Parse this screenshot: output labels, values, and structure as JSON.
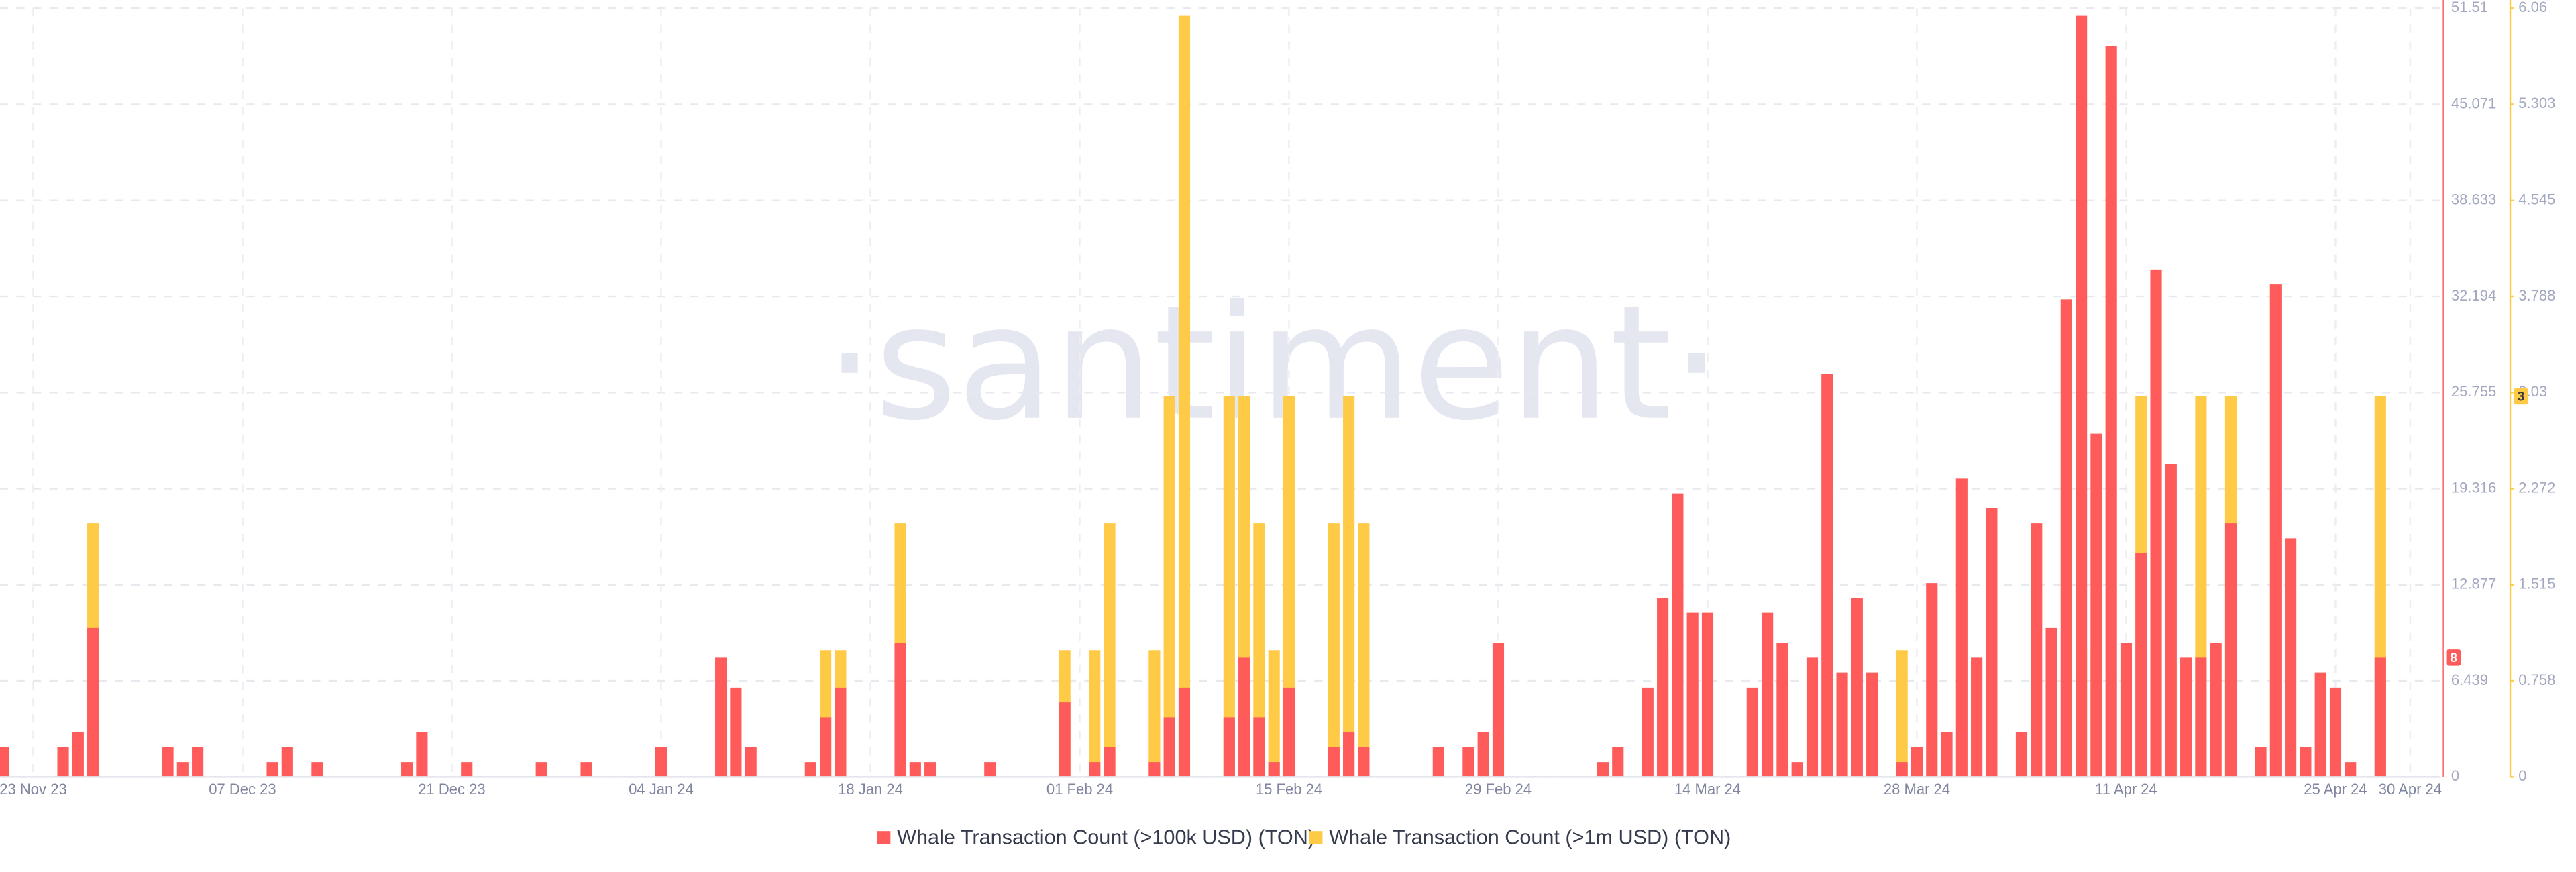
{
  "chart_data": {
    "type": "bar",
    "watermark": "·santiment·",
    "categories": [
      null,
      null,
      "23 Nov 23",
      null,
      null,
      null,
      null,
      null,
      null,
      null,
      null,
      null,
      null,
      null,
      null,
      null,
      "07 Dec 23",
      null,
      null,
      null,
      null,
      null,
      null,
      null,
      null,
      null,
      null,
      null,
      null,
      null,
      "21 Dec 23",
      null,
      null,
      null,
      null,
      null,
      null,
      null,
      null,
      null,
      null,
      null,
      null,
      null,
      "04 Jan 24",
      null,
      null,
      null,
      null,
      null,
      null,
      null,
      null,
      null,
      null,
      null,
      null,
      null,
      "18 Jan 24",
      null,
      null,
      null,
      null,
      null,
      null,
      null,
      null,
      null,
      null,
      null,
      null,
      null,
      "01 Feb 24",
      null,
      null,
      null,
      null,
      null,
      null,
      null,
      null,
      null,
      null,
      null,
      null,
      null,
      "15 Feb 24",
      null,
      null,
      null,
      null,
      null,
      null,
      null,
      null,
      null,
      null,
      null,
      null,
      null,
      "29 Feb 24",
      null,
      null,
      null,
      null,
      null,
      null,
      null,
      null,
      null,
      null,
      null,
      null,
      null,
      "14 Mar 24",
      null,
      null,
      null,
      null,
      null,
      null,
      null,
      null,
      null,
      null,
      null,
      null,
      null,
      "28 Mar 24",
      null,
      null,
      null,
      null,
      null,
      null,
      null,
      null,
      null,
      null,
      null,
      null,
      null,
      "11 Apr 24",
      null,
      null,
      null,
      null,
      null,
      null,
      null,
      null,
      null,
      null,
      null,
      null,
      null,
      "25 Apr 24",
      null,
      null,
      null,
      null,
      "30 Apr 24"
    ],
    "series": [
      {
        "name": "Whale Transaction Count (>100k USD) (TON)",
        "color": "#ff5b5b",
        "values": [
          2,
          0,
          0,
          0,
          2,
          3,
          10,
          0,
          0,
          0,
          0,
          2,
          1,
          2,
          0,
          0,
          0,
          0,
          1,
          2,
          0,
          1,
          0,
          0,
          0,
          0,
          0,
          1,
          3,
          0,
          0,
          1,
          0,
          0,
          0,
          0,
          1,
          0,
          0,
          1,
          0,
          0,
          0,
          0,
          2,
          0,
          0,
          0,
          8,
          6,
          2,
          0,
          0,
          0,
          1,
          4,
          6,
          0,
          0,
          0,
          9,
          1,
          1,
          0,
          0,
          0,
          1,
          0,
          0,
          0,
          0,
          5,
          0,
          1,
          2,
          0,
          0,
          1,
          4,
          6,
          0,
          0,
          4,
          8,
          4,
          1,
          6,
          0,
          0,
          2,
          3,
          2,
          0,
          0,
          0,
          0,
          2,
          0,
          2,
          3,
          9,
          0,
          0,
          0,
          0,
          0,
          0,
          1,
          2,
          0,
          6,
          12,
          19,
          11,
          11,
          0,
          0,
          6,
          11,
          9,
          1,
          8,
          27,
          7,
          12,
          7,
          0,
          1,
          2,
          13,
          3,
          20,
          8,
          18,
          0,
          3,
          17,
          10,
          32,
          51,
          23,
          49,
          9,
          15,
          34,
          21,
          8,
          8,
          9,
          17,
          0,
          2,
          33,
          16,
          2,
          7,
          6,
          1,
          0,
          8,
          0,
          0
        ]
      },
      {
        "name": "Whale Transaction Count (>1m USD) (TON)",
        "color": "#ffcb47",
        "axis": "y2",
        "values": [
          0,
          0,
          0,
          0,
          0,
          0,
          2,
          0,
          0,
          0,
          0,
          0,
          0,
          0,
          0,
          0,
          0,
          0,
          0,
          0,
          0,
          0,
          0,
          0,
          0,
          0,
          0,
          0,
          0,
          0,
          0,
          0,
          0,
          0,
          0,
          0,
          0,
          0,
          0,
          0,
          0,
          0,
          0,
          0,
          0,
          0,
          0,
          0,
          0,
          0,
          0,
          0,
          0,
          0,
          0,
          1,
          1,
          0,
          0,
          0,
          2,
          0,
          0,
          0,
          0,
          0,
          0,
          0,
          0,
          0,
          0,
          1,
          0,
          1,
          2,
          0,
          0,
          1,
          3,
          6,
          0,
          0,
          3,
          3,
          2,
          1,
          3,
          0,
          0,
          2,
          3,
          2,
          0,
          0,
          0,
          0,
          0,
          0,
          0,
          0,
          0,
          0,
          0,
          0,
          0,
          0,
          0,
          0,
          0,
          0,
          0,
          1,
          0,
          0,
          0,
          0,
          0,
          0,
          0,
          0,
          0,
          0,
          0,
          0,
          0,
          0,
          0,
          1,
          0,
          0,
          0,
          0,
          0,
          0,
          0,
          0,
          0,
          0,
          0,
          1,
          1,
          0,
          0,
          3,
          0,
          0,
          0,
          3,
          0,
          3,
          0,
          0,
          0,
          0,
          0,
          0,
          0,
          0,
          0,
          3,
          0,
          0
        ]
      }
    ],
    "ylim": [
      0,
      51.51
    ],
    "yticks": [
      0,
      6.439,
      12.877,
      19.316,
      25.755,
      32.194,
      38.633,
      45.071,
      51.51
    ],
    "y2lim": [
      0,
      6.06
    ],
    "y2ticks": [
      0,
      0.758,
      1.515,
      2.272,
      3.03,
      3.788,
      4.545,
      5.303,
      6.06
    ],
    "grid": true,
    "legend": "bottom"
  }
}
